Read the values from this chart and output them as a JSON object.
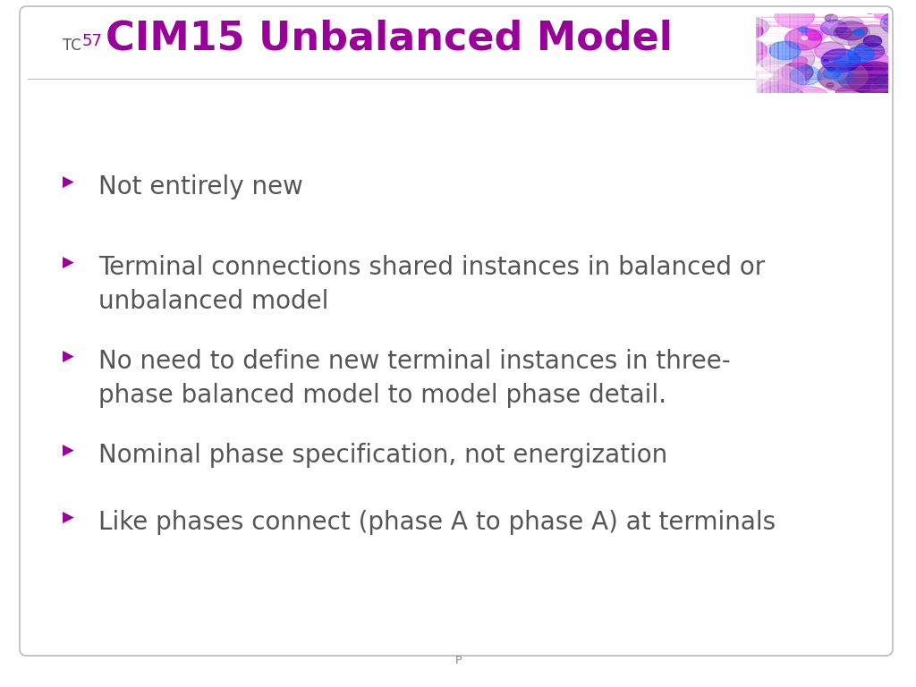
{
  "bg_color": "#ffffff",
  "title_tc": "TC",
  "title_57": "57",
  "title_main": "CIM15 Unbalanced Model",
  "title_prefix_color": "#555555",
  "title_57_color": "#990099",
  "title_main_color": "#990099",
  "bullet_color": "#990099",
  "text_color": "#555555",
  "bullet_items": [
    "Not entirely new",
    "Terminal connections shared instances in balanced or\nunbalanced model",
    "No need to define new terminal instances in three-\nphase balanced model to model phase detail.",
    "Nominal phase specification, not energization",
    "Like phases connect (phase A to phase A) at terminals"
  ],
  "footer_text": "P",
  "font_size_title": 32,
  "font_size_bullet": 20,
  "font_size_prefix_tc": 12,
  "font_size_prefix_57": 13,
  "border_color": "#bbbbbb",
  "footer_color": "#888888"
}
